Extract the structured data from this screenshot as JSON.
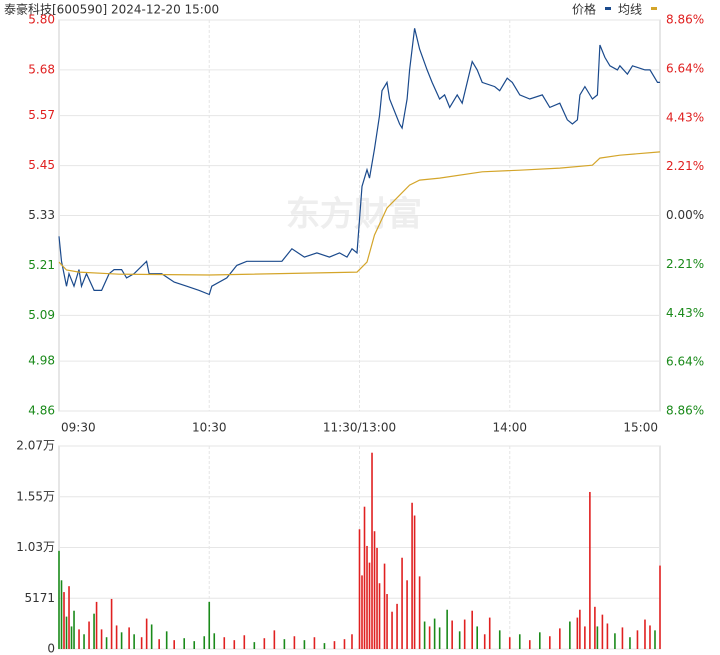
{
  "header": {
    "title": "泰豪科技[600590] 2024-12-20 15:00"
  },
  "watermark": "东方财富",
  "chart_data": [
    {
      "type": "line",
      "series": [
        {
          "name": "价格",
          "color": "#1b4a8c",
          "x": [
            0,
            1,
            3,
            4,
            6,
            8,
            9,
            11,
            14,
            17,
            20,
            22,
            25,
            27,
            30,
            35,
            36,
            41,
            46,
            51,
            56,
            60,
            61,
            67,
            71,
            75,
            80,
            84,
            89,
            93,
            98,
            103,
            108,
            112,
            115,
            117,
            119,
            121,
            123,
            124,
            126,
            128,
            129,
            131,
            132,
            136,
            137,
            139,
            140,
            142,
            144,
            147,
            149,
            152,
            154,
            156,
            159,
            161,
            165,
            167,
            169,
            174,
            176,
            179,
            181,
            184,
            188,
            193,
            196,
            200,
            203,
            205,
            207,
            208,
            210,
            213,
            215,
            216,
            218,
            220,
            223,
            224,
            227,
            229,
            234,
            236,
            239,
            240
          ],
          "values": [
            5.28,
            5.22,
            5.16,
            5.19,
            5.16,
            5.2,
            5.16,
            5.19,
            5.15,
            5.15,
            5.19,
            5.2,
            5.2,
            5.18,
            5.19,
            5.22,
            5.19,
            5.19,
            5.17,
            5.16,
            5.15,
            5.14,
            5.16,
            5.18,
            5.21,
            5.22,
            5.22,
            5.22,
            5.22,
            5.25,
            5.23,
            5.24,
            5.23,
            5.24,
            5.23,
            5.25,
            5.24,
            5.4,
            5.44,
            5.42,
            5.49,
            5.57,
            5.63,
            5.65,
            5.61,
            5.55,
            5.54,
            5.61,
            5.68,
            5.78,
            5.73,
            5.68,
            5.65,
            5.61,
            5.62,
            5.59,
            5.62,
            5.6,
            5.7,
            5.68,
            5.65,
            5.64,
            5.63,
            5.66,
            5.65,
            5.62,
            5.61,
            5.62,
            5.59,
            5.6,
            5.56,
            5.55,
            5.56,
            5.62,
            5.64,
            5.61,
            5.62,
            5.74,
            5.71,
            5.69,
            5.68,
            5.69,
            5.67,
            5.69,
            5.68,
            5.68,
            5.65,
            5.65
          ]
        },
        {
          "name": "均线",
          "color": "#d4a52a",
          "x": [
            0,
            3,
            8,
            24,
            60,
            119,
            123,
            126,
            131,
            140,
            144,
            152,
            169,
            184,
            200,
            213,
            216,
            224,
            240
          ],
          "values": [
            5.218,
            5.199,
            5.194,
            5.189,
            5.187,
            5.194,
            5.218,
            5.283,
            5.348,
            5.403,
            5.415,
            5.42,
            5.435,
            5.439,
            5.444,
            5.451,
            5.468,
            5.475,
            5.483
          ]
        }
      ],
      "xlim": [
        0,
        240
      ],
      "xticks": [
        {
          "value": 0,
          "label": "09:30"
        },
        {
          "value": 60,
          "label": "10:30"
        },
        {
          "value": 120,
          "label": "11:30/13:00"
        },
        {
          "value": 180,
          "label": "14:00"
        },
        {
          "value": 240,
          "label": "15:00"
        }
      ],
      "ylim": [
        4.86,
        5.8
      ],
      "yticks": [
        {
          "value": 5.8,
          "label": "5.80"
        },
        5.68,
        5.57,
        5.45,
        5.33,
        5.21,
        5.09,
        4.98,
        4.86
      ],
      "y2lim": [
        -8.86,
        8.86
      ],
      "y2ticks": [
        {
          "value": 8.86,
          "label": "8.86%"
        },
        {
          "value": 6.64,
          "label": "6.64%"
        },
        {
          "value": 4.43,
          "label": "4.43%"
        },
        {
          "value": 2.21,
          "label": "2.21%"
        },
        {
          "value": 0,
          "label": "0.00%"
        },
        {
          "value": -2.21,
          "label": "2.21%"
        },
        {
          "value": -4.43,
          "label": "4.43%"
        },
        {
          "value": -6.64,
          "label": "6.64%"
        },
        {
          "value": -8.86,
          "label": "8.86%"
        }
      ],
      "up_color": "#e02020",
      "down_color": "#1a8a1a",
      "grid": true
    },
    {
      "type": "bar",
      "x": [
        0,
        1,
        2,
        3,
        4,
        5,
        6,
        8,
        10,
        12,
        14,
        15,
        17,
        19,
        21,
        23,
        25,
        28,
        30,
        33,
        35,
        37,
        40,
        43,
        46,
        50,
        54,
        58,
        60,
        62,
        66,
        70,
        74,
        78,
        82,
        86,
        90,
        94,
        98,
        102,
        106,
        110,
        114,
        117,
        120,
        121,
        122,
        123,
        124,
        125,
        126,
        127,
        128,
        130,
        131,
        133,
        135,
        137,
        139,
        141,
        142,
        144,
        146,
        148,
        150,
        152,
        155,
        157,
        160,
        162,
        165,
        167,
        170,
        172,
        176,
        180,
        184,
        188,
        192,
        196,
        200,
        204,
        207,
        208,
        210,
        212,
        214,
        215,
        217,
        219,
        222,
        225,
        228,
        231,
        234,
        236,
        238,
        240
      ],
      "values": [
        10000,
        7000,
        5800,
        3300,
        6400,
        2300,
        3900,
        2000,
        1500,
        2800,
        3600,
        4800,
        2000,
        1200,
        5100,
        2400,
        1700,
        2200,
        1500,
        1200,
        3100,
        2500,
        1000,
        1800,
        900,
        1100,
        800,
        1300,
        4800,
        1600,
        1200,
        900,
        1400,
        700,
        1100,
        1900,
        1000,
        1300,
        900,
        1200,
        600,
        800,
        1000,
        1500,
        12200,
        7500,
        14500,
        10500,
        8800,
        20000,
        12000,
        10300,
        6700,
        8700,
        5600,
        3800,
        4600,
        9300,
        7000,
        14900,
        13600,
        7400,
        2800,
        2300,
        3100,
        2200,
        4000,
        2900,
        1800,
        3000,
        3900,
        2300,
        1500,
        3200,
        1900,
        1200,
        1500,
        900,
        1700,
        1300,
        2100,
        2800,
        3200,
        4000,
        2300,
        16000,
        4300,
        2300,
        3500,
        2600,
        1600,
        2200,
        1200,
        1900,
        3000,
        2400,
        1900,
        8500
      ],
      "colors": [
        "#1a8a1a",
        "#1a8a1a",
        "#e02020",
        "#1a8a1a",
        "#e02020",
        "#1a8a1a",
        "#1a8a1a",
        "#e02020",
        "#1a8a1a",
        "#e02020",
        "#1a8a1a",
        "#e02020",
        "#e02020",
        "#1a8a1a",
        "#e02020",
        "#e02020",
        "#1a8a1a",
        "#e02020",
        "#1a8a1a",
        "#e02020",
        "#e02020",
        "#1a8a1a",
        "#e02020",
        "#1a8a1a",
        "#e02020",
        "#1a8a1a",
        "#1a8a1a",
        "#1a8a1a",
        "#1a8a1a",
        "#1a8a1a",
        "#e02020",
        "#e02020",
        "#e02020",
        "#1a8a1a",
        "#e02020",
        "#e02020",
        "#1a8a1a",
        "#e02020",
        "#1a8a1a",
        "#e02020",
        "#1a8a1a",
        "#e02020",
        "#e02020",
        "#e02020",
        "#e02020",
        "#e02020",
        "#e02020",
        "#e02020",
        "#e02020",
        "#e02020",
        "#e02020",
        "#e02020",
        "#e02020",
        "#e02020",
        "#e02020",
        "#e02020",
        "#e02020",
        "#e02020",
        "#e02020",
        "#e02020",
        "#e02020",
        "#e02020",
        "#1a8a1a",
        "#e02020",
        "#1a8a1a",
        "#1a8a1a",
        "#1a8a1a",
        "#e02020",
        "#1a8a1a",
        "#e02020",
        "#e02020",
        "#1a8a1a",
        "#e02020",
        "#e02020",
        "#1a8a1a",
        "#e02020",
        "#1a8a1a",
        "#e02020",
        "#1a8a1a",
        "#e02020",
        "#e02020",
        "#1a8a1a",
        "#e02020",
        "#e02020",
        "#e02020",
        "#e02020",
        "#e02020",
        "#1a8a1a",
        "#e02020",
        "#e02020",
        "#1a8a1a",
        "#e02020",
        "#1a8a1a",
        "#e02020",
        "#e02020",
        "#e02020",
        "#1a8a1a",
        "#e02020"
      ],
      "xlim": [
        0,
        240
      ],
      "ylim": [
        0,
        20684
      ],
      "yticks": [
        {
          "value": 20684,
          "label": "2.07万"
        },
        {
          "value": 15513,
          "label": "1.55万"
        },
        {
          "value": 10342,
          "label": "1.03万"
        },
        5171,
        0
      ],
      "grid": true
    }
  ]
}
